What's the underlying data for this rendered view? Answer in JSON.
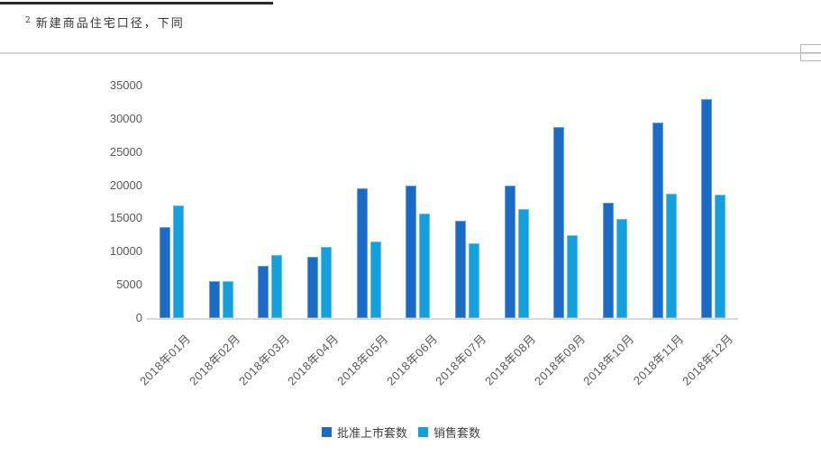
{
  "footnote": {
    "marker": "2",
    "text": "新建商品住宅口径，下同"
  },
  "chart_data": {
    "type": "bar",
    "title": "",
    "xlabel": "",
    "ylabel": "",
    "categories": [
      "2018年01月",
      "2018年02月",
      "2018年03月",
      "2018年04月",
      "2018年05月",
      "2018年06月",
      "2018年07月",
      "2018年08月",
      "2018年09月",
      "2018年10月",
      "2018年11月",
      "2018年12月"
    ],
    "series": [
      {
        "name": "批准上市套数",
        "color": "#1A6BC5",
        "values": [
          13700,
          5600,
          7900,
          9200,
          19600,
          20000,
          14700,
          20000,
          28700,
          17400,
          29500,
          33000
        ]
      },
      {
        "name": "销售套数",
        "color": "#14A0DC",
        "values": [
          17000,
          5500,
          9500,
          10700,
          11500,
          15800,
          11300,
          16400,
          12500,
          14900,
          18700,
          18600
        ]
      }
    ],
    "ylim": [
      0,
      35000
    ],
    "ytick_step": 5000,
    "grid": false,
    "legend_position": "bottom",
    "axis_label_color": "#595959"
  }
}
